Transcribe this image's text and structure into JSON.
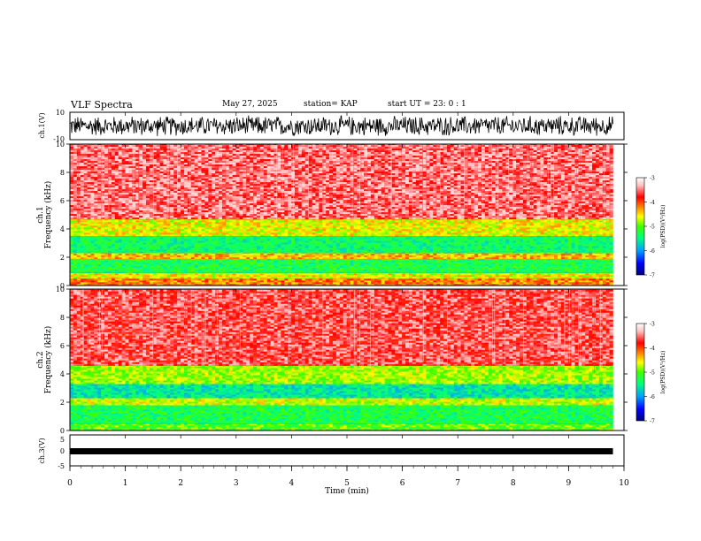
{
  "header": {
    "title": "VLF Spectra",
    "date": "May 27, 2025",
    "station": "station= KAP",
    "start": "start  UT  =   23: 0  : 1"
  },
  "colors": {
    "background": "#ffffff",
    "trace": "#000000",
    "colorscale": [
      "#000080",
      "#0000ff",
      "#00a0ff",
      "#00ff80",
      "#40ff00",
      "#ffff00",
      "#ff8000",
      "#ff0000",
      "#ffc0c0",
      "#ffffff"
    ]
  },
  "chart_data": [
    {
      "type": "line",
      "name": "ch1-waveform",
      "ylabel": "ch.1(V)",
      "ylim": [
        -10,
        10
      ],
      "yticks": [
        "10",
        "-10"
      ],
      "xlim": [
        0,
        10
      ],
      "description_values": {
        "amplitude_min": -8,
        "amplitude_max": 8,
        "end_min": 9.8
      }
    },
    {
      "type": "heatmap",
      "name": "ch1-spectrogram",
      "ylabel_line1": "ch.1",
      "ylabel_line2": "Frequency  (kHz)",
      "ylim": [
        0,
        10
      ],
      "yticks": [
        "0",
        "2",
        "4",
        "6",
        "8",
        "10"
      ],
      "xlim": [
        0,
        10
      ],
      "data_end_min": 9.8,
      "colorbar": {
        "label": "log(PSD)(V²/Hz)",
        "min": -7,
        "max": -3,
        "ticks": [
          "-3",
          "-4",
          "-5",
          "-6",
          "-7"
        ]
      },
      "bands_khz": [
        {
          "from": 0.0,
          "to": 0.5,
          "level": -4.2
        },
        {
          "from": 0.5,
          "to": 0.9,
          "level": -4.6
        },
        {
          "from": 0.9,
          "to": 1.9,
          "level": -5.3
        },
        {
          "from": 1.9,
          "to": 2.3,
          "level": -4.4
        },
        {
          "from": 2.3,
          "to": 3.5,
          "level": -5.4
        },
        {
          "from": 3.5,
          "to": 4.7,
          "level": -4.6
        },
        {
          "from": 4.7,
          "to": 10.0,
          "level": -3.5
        }
      ]
    },
    {
      "type": "heatmap",
      "name": "ch2-spectrogram",
      "ylabel_line1": "ch.2",
      "ylabel_line2": "Frequency  (kHz)",
      "ylim": [
        0,
        10
      ],
      "yticks": [
        "0",
        "2",
        "4",
        "6",
        "8",
        "10"
      ],
      "xlim": [
        0,
        10
      ],
      "data_end_min": 9.8,
      "colorbar": {
        "label": "log(PSD)(V²/Hz)",
        "min": -7,
        "max": -3,
        "ticks": [
          "-3",
          "-4",
          "-5",
          "-6",
          "-7"
        ]
      },
      "bands_khz": [
        {
          "from": 0.0,
          "to": 0.5,
          "level": -5.0
        },
        {
          "from": 0.5,
          "to": 1.8,
          "level": -5.3
        },
        {
          "from": 1.8,
          "to": 2.3,
          "level": -4.7
        },
        {
          "from": 2.3,
          "to": 3.3,
          "level": -5.6
        },
        {
          "from": 3.3,
          "to": 4.6,
          "level": -4.8
        },
        {
          "from": 4.6,
          "to": 10.0,
          "level": -3.6
        }
      ]
    },
    {
      "type": "line",
      "name": "ch3-waveform",
      "ylabel": "ch.3(V)",
      "ylim": [
        -5,
        5
      ],
      "yticks": [
        "5",
        "0",
        "-5"
      ],
      "xlim": [
        0,
        10
      ],
      "level": 0,
      "xlabel": "Time  (min)",
      "xticks": [
        "0",
        "1",
        "2",
        "3",
        "4",
        "5",
        "6",
        "7",
        "8",
        "9",
        "10"
      ]
    }
  ]
}
